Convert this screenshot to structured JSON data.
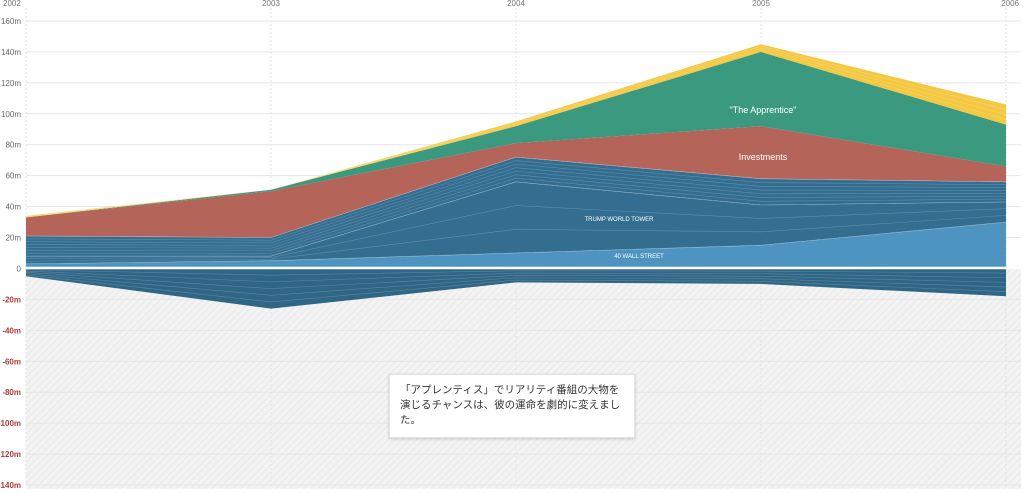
{
  "chart_data": {
    "type": "area",
    "x": [
      "2002",
      "2003",
      "2004",
      "2005",
      "2006"
    ],
    "y_ticks": [
      "160m",
      "140m",
      "120m",
      "100m",
      "80m",
      "60m",
      "40m",
      "20m",
      "0",
      "-20m",
      "-40m",
      "-60m",
      "-80m",
      "-100m",
      "-120m",
      "-140m"
    ],
    "ylim": [
      -140,
      160
    ],
    "grid": true,
    "colors": {
      "tower": "#4d94c1",
      "tower_dark": "#336e91",
      "investments": "#b5645a",
      "apprentice": "#3a997f",
      "yellow": "#f5c842",
      "negative": "#2f6585",
      "negative_label": "#b03c3c"
    },
    "series": [
      {
        "name": "40 WALL STREET",
        "values": [
          3,
          5,
          10,
          15,
          30
        ]
      },
      {
        "name": "TRUMP WORLD TOWER",
        "values": [
          5,
          3,
          46,
          26,
          13
        ]
      },
      {
        "values": [
          13,
          12,
          16,
          17,
          13
        ]
      },
      {
        "name": "Investments",
        "values": [
          12,
          30,
          9,
          34,
          10
        ]
      },
      {
        "name": "\"The Apprentice\"",
        "values": [
          0,
          1,
          11,
          48,
          27
        ]
      },
      {
        "values": [
          1,
          0,
          3,
          5,
          13
        ]
      },
      {
        "values": [
          -5,
          -26,
          -9,
          -10,
          -18
        ]
      }
    ],
    "labels": {
      "apprentice": "\"The Apprentice\"",
      "investments": "Investments",
      "tower": "TRUMP WORLD TOWER",
      "wall": "40 WALL STREET"
    }
  },
  "callout": {
    "text": "「アプレンティス」でリアリティ番組の大物を演じるチャンスは、彼の運命を劇的に変えました。"
  }
}
